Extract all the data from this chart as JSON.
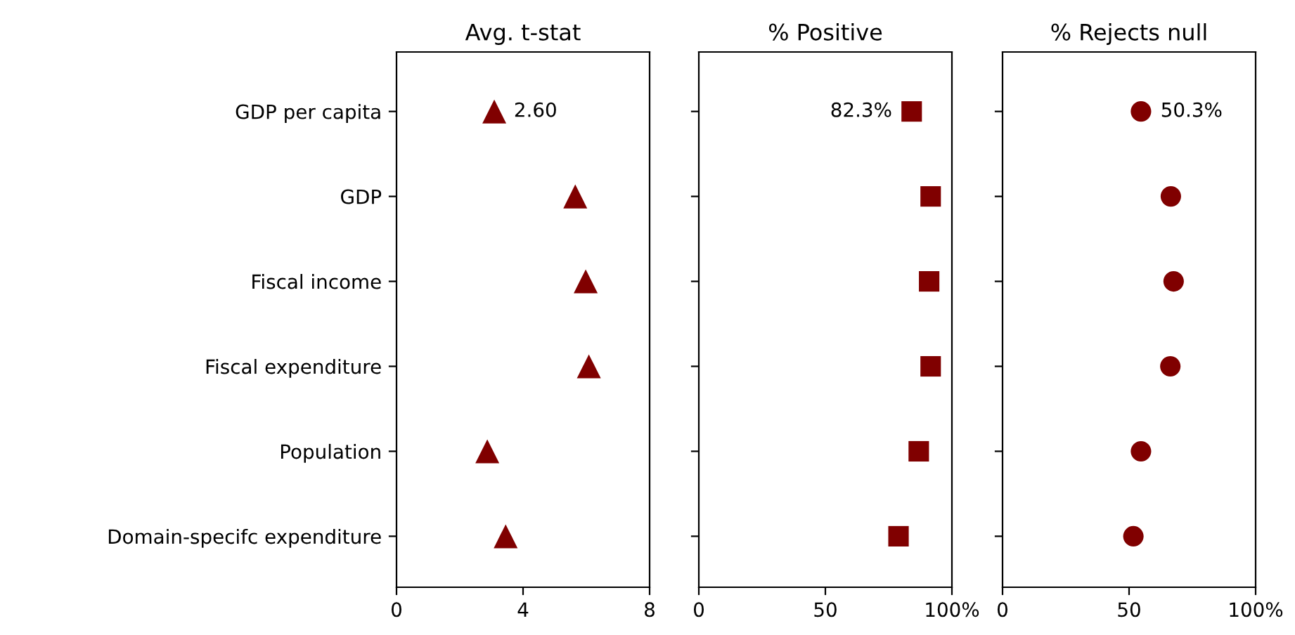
{
  "chart_data": [
    {
      "type": "scatter",
      "orientation": "horizontal",
      "title": "Avg. t-stat",
      "categories": [
        "GDP per capita",
        "GDP",
        "Fiscal income",
        "Fiscal expenditure",
        "Population",
        "Domain-specifc expenditure"
      ],
      "color": "#800000",
      "marker": "triangle",
      "values": [
        3.09,
        5.65,
        5.98,
        6.08,
        2.87,
        3.45
      ],
      "xlim": [
        0,
        8
      ],
      "xticks": [
        0,
        4,
        8
      ],
      "grid": false,
      "annotations": [
        {
          "text": "2.60",
          "x": 3.09,
          "y": "GDP per capita"
        }
      ]
    },
    {
      "type": "scatter",
      "orientation": "horizontal",
      "title": "% Positive",
      "categories": [
        null,
        null,
        null,
        null,
        null,
        null
      ],
      "color": "#800000",
      "marker": "square",
      "values": [
        84.1,
        91.6,
        91.0,
        91.6,
        86.9,
        78.9
      ],
      "xlim": [
        0,
        100
      ],
      "xticks": [
        0,
        50,
        {
          "value": 100,
          "label": "100%"
        }
      ],
      "tick_labels": "x",
      "grid": false,
      "annotations": [
        {
          "text": "82.3%",
          "x": 84.1
        }
      ]
    },
    {
      "type": "scatter",
      "orientation": "horizontal",
      "title": "% Rejects null",
      "categories": [
        null,
        null,
        null,
        null,
        null,
        null
      ],
      "color": "#800000",
      "marker": "circle",
      "values": [
        54.7,
        66.5,
        67.6,
        66.3,
        54.7,
        51.7
      ],
      "xlim": [
        0,
        100
      ],
      "xticks": [
        0,
        50,
        {
          "value": 100,
          "label": "100%"
        }
      ],
      "tick_labels": "x",
      "grid": false,
      "annotations": [
        {
          "text": "50.3%",
          "x": 54.7
        }
      ]
    }
  ]
}
